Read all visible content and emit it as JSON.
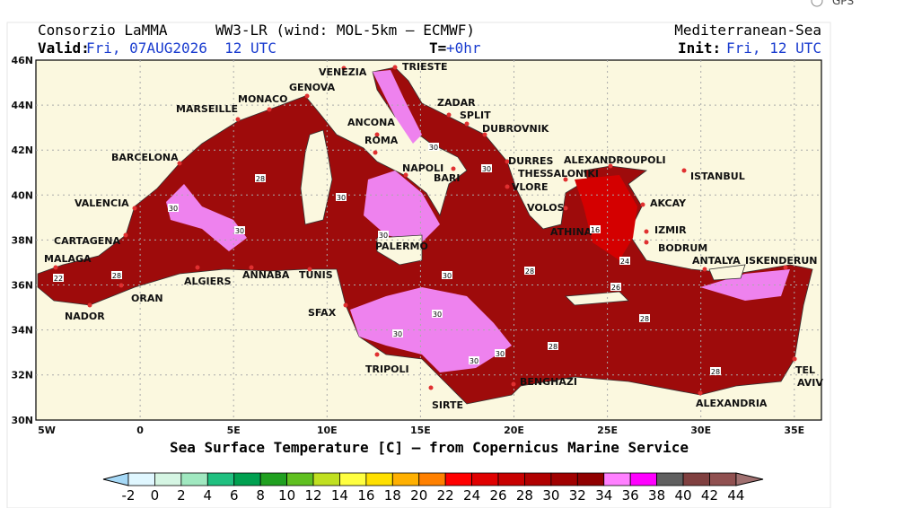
{
  "header": {
    "source": "Consorzio LaMMA",
    "model": "WW3-LR (wind: MOL-5km – ECMWF)",
    "region": "Mediterranean-Sea",
    "valid_label": "Valid:",
    "valid_value": "Fri, 07AUG2026  12 UTC",
    "t_label": "T=",
    "t_value": "+0hr",
    "init_label": "Init:",
    "init_value": "Fri, 12 UTC"
  },
  "gps": "GPS",
  "map": {
    "lat_labels": [
      "46N",
      "44N",
      "42N",
      "40N",
      "38N",
      "36N",
      "34N",
      "32N",
      "30N"
    ],
    "lon_labels": [
      "5W",
      "0",
      "5E",
      "10E",
      "15E",
      "20E",
      "25E",
      "30E",
      "35E"
    ],
    "cities": [
      "VENEZIA",
      "TRIESTE",
      "GENOVA",
      "MONACO",
      "MARSEILLE",
      "ZADAR",
      "SPLIT",
      "ANCONA",
      "DUBROVNIK",
      "ROMA",
      "BARCELONA",
      "NAPOLI",
      "BARI",
      "DURRES",
      "THESSALONIKI",
      "ALEXANDROUPOLI",
      "ISTANBUL",
      "VLORE",
      "VALENCIA",
      "VOLOS",
      "AKCAY",
      "CARTAGENA",
      "PALERMO",
      "ATHINA",
      "IZMIR",
      "BODRUM",
      "MALAGA",
      "ANTALYA",
      "ISKENDERUN",
      "ALGIERS",
      "ANNABA",
      "TUNIS",
      "ORAN",
      "NADOR",
      "SFAX",
      "TRIPOLI",
      "BENGHAZI",
      "SIRTE",
      "TEL",
      "AVIV",
      "ALEXANDRIA"
    ],
    "contour_labels": [
      "22",
      "28",
      "28",
      "30",
      "30",
      "30",
      "30",
      "30",
      "30",
      "30",
      "28",
      "30",
      "30",
      "30",
      "30",
      "16",
      "24",
      "26",
      "28",
      "28",
      "28"
    ]
  },
  "caption": "Sea Surface Temperature [C] – from Copernicus Marine Service",
  "colorbar": {
    "labels": [
      "-2",
      "0",
      "2",
      "4",
      "6",
      "8",
      "10",
      "12",
      "14",
      "16",
      "18",
      "20",
      "22",
      "24",
      "26",
      "28",
      "30",
      "32",
      "34",
      "36",
      "38",
      "40",
      "42",
      "44"
    ]
  }
}
